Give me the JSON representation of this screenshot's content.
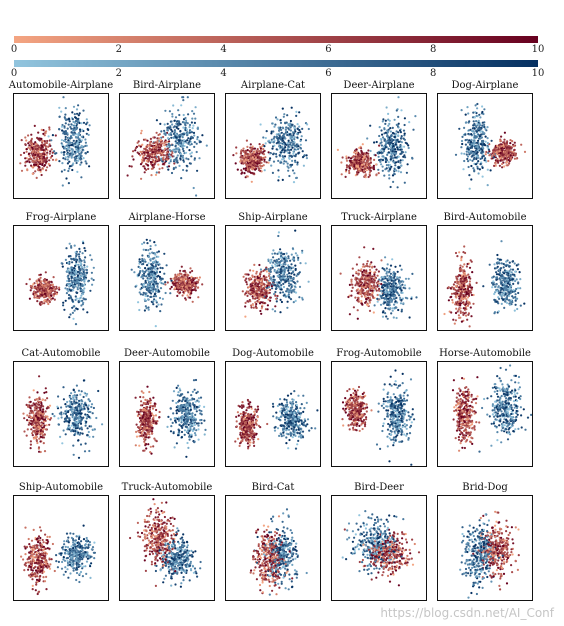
{
  "colorbars": [
    {
      "name": "reds",
      "from": "#f4a582",
      "to": "#67001f",
      "ticks": [
        "0",
        "2",
        "4",
        "6",
        "8",
        "10"
      ]
    },
    {
      "name": "blues",
      "from": "#92c5de",
      "to": "#053061",
      "ticks": [
        "0",
        "2",
        "4",
        "6",
        "8",
        "10"
      ]
    }
  ],
  "watermark": "https://blog.csdn.net/AI_Conf",
  "chart_data": {
    "type": "scatter",
    "colorbar_range": [
      0,
      10
    ],
    "panels": [
      {
        "title": "Automobile-Airplane",
        "red": [
          0.25,
          0.55,
          0.16,
          0.2
        ],
        "blue": [
          0.62,
          0.45,
          0.18,
          0.32
        ]
      },
      {
        "title": "Bird-Airplane",
        "red": [
          0.35,
          0.55,
          0.22,
          0.18
        ],
        "blue": [
          0.62,
          0.42,
          0.22,
          0.32
        ]
      },
      {
        "title": "Airplane-Cat",
        "red": [
          0.28,
          0.62,
          0.16,
          0.14
        ],
        "blue": [
          0.62,
          0.45,
          0.22,
          0.3
        ]
      },
      {
        "title": "Deer-Airplane",
        "red": [
          0.3,
          0.65,
          0.16,
          0.12
        ],
        "blue": [
          0.62,
          0.5,
          0.18,
          0.3
        ]
      },
      {
        "title": "Dog-Airplane",
        "red": [
          0.68,
          0.55,
          0.15,
          0.12
        ],
        "blue": [
          0.4,
          0.45,
          0.15,
          0.32
        ]
      },
      {
        "title": "Frog-Airplane",
        "red": [
          0.32,
          0.6,
          0.14,
          0.12
        ],
        "blue": [
          0.65,
          0.5,
          0.16,
          0.32
        ]
      },
      {
        "title": "Airplane-Horse",
        "red": [
          0.68,
          0.55,
          0.15,
          0.12
        ],
        "blue": [
          0.32,
          0.5,
          0.15,
          0.32
        ]
      },
      {
        "title": "Ship-Airplane",
        "red": [
          0.35,
          0.6,
          0.16,
          0.2
        ],
        "blue": [
          0.6,
          0.45,
          0.2,
          0.32
        ]
      },
      {
        "title": "Truck-Airplane",
        "red": [
          0.35,
          0.55,
          0.16,
          0.22
        ],
        "blue": [
          0.62,
          0.6,
          0.18,
          0.25
        ]
      },
      {
        "title": "Bird-Automobile",
        "red": [
          0.25,
          0.6,
          0.12,
          0.3
        ],
        "blue": [
          0.7,
          0.55,
          0.16,
          0.25
        ]
      },
      {
        "title": "Cat-Automobile",
        "red": [
          0.25,
          0.55,
          0.12,
          0.25
        ],
        "blue": [
          0.65,
          0.5,
          0.18,
          0.25
        ]
      },
      {
        "title": "Deer-Automobile",
        "red": [
          0.28,
          0.55,
          0.12,
          0.25
        ],
        "blue": [
          0.7,
          0.5,
          0.16,
          0.25
        ]
      },
      {
        "title": "Dog-Automobile",
        "red": [
          0.22,
          0.6,
          0.12,
          0.2
        ],
        "blue": [
          0.68,
          0.55,
          0.18,
          0.22
        ]
      },
      {
        "title": "Frog-Automobile",
        "red": [
          0.25,
          0.45,
          0.12,
          0.18
        ],
        "blue": [
          0.68,
          0.5,
          0.16,
          0.3
        ]
      },
      {
        "title": "Horse-Automobile",
        "red": [
          0.28,
          0.5,
          0.12,
          0.32
        ],
        "blue": [
          0.7,
          0.45,
          0.18,
          0.28
        ]
      },
      {
        "title": "Ship-Automobile",
        "red": [
          0.25,
          0.6,
          0.14,
          0.25
        ],
        "blue": [
          0.65,
          0.55,
          0.18,
          0.2
        ]
      },
      {
        "title": "Truck-Automobile",
        "red": [
          0.4,
          0.4,
          0.18,
          0.3
        ],
        "blue": [
          0.6,
          0.6,
          0.22,
          0.2
        ]
      },
      {
        "title": "Bird-Cat",
        "red": [
          0.45,
          0.6,
          0.18,
          0.3
        ],
        "blue": [
          0.58,
          0.55,
          0.18,
          0.32
        ]
      },
      {
        "title": "Bird-Deer",
        "red": [
          0.58,
          0.55,
          0.25,
          0.2
        ],
        "blue": [
          0.45,
          0.45,
          0.25,
          0.25
        ]
      },
      {
        "title": "Brid-Dog",
        "red": [
          0.62,
          0.5,
          0.18,
          0.28
        ],
        "blue": [
          0.42,
          0.55,
          0.18,
          0.3
        ]
      }
    ]
  }
}
